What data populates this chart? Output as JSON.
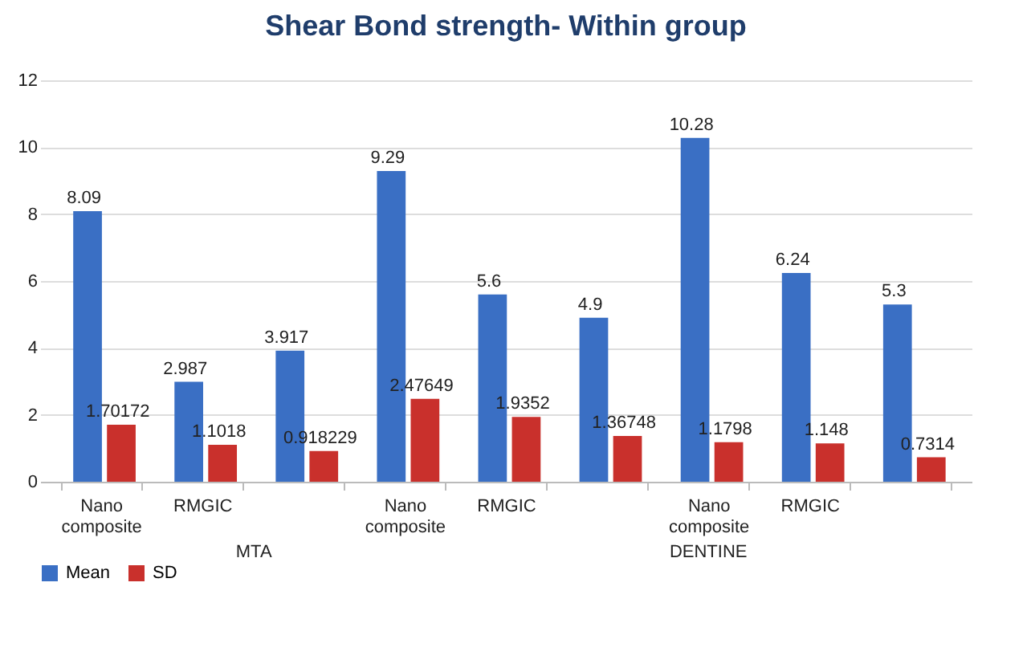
{
  "chart_data": {
    "type": "bar",
    "title": "Shear Bond strength- Within group",
    "categories": [
      "Nano composite",
      "RMGIC",
      null,
      "Nano composite",
      "RMGIC",
      null,
      "Nano composite",
      "RMGIC",
      null
    ],
    "series": [
      {
        "name": "Mean",
        "color": "#3a6fc4",
        "values": [
          8.09,
          2.987,
          3.917,
          9.29,
          5.6,
          4.9,
          10.28,
          6.24,
          5.3
        ]
      },
      {
        "name": "SD",
        "color": "#c9302c",
        "values": [
          1.70172,
          1.1018,
          0.918229,
          2.47649,
          1.9352,
          1.36748,
          1.1798,
          1.148,
          0.7314
        ]
      }
    ],
    "ylim": [
      0,
      12
    ],
    "yticks": [
      0,
      2,
      4,
      6,
      8,
      10,
      12
    ],
    "grid": "y",
    "legend": "bottom",
    "data_labels": true,
    "annotations": [
      "MTA",
      "DENTINE"
    ]
  }
}
